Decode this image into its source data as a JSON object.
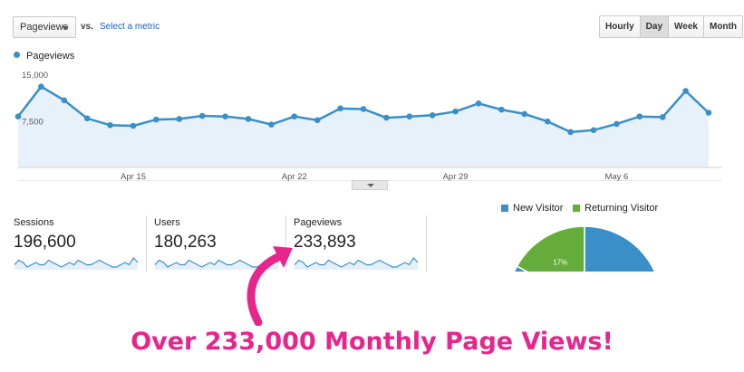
{
  "controls": {
    "metric_select": "Pageviews",
    "vs_label": "vs.",
    "select_metric_link": "Select a metric",
    "ranges": [
      {
        "label": "Hourly",
        "active": false
      },
      {
        "label": "Day",
        "active": true
      },
      {
        "label": "Week",
        "active": false
      },
      {
        "label": "Month",
        "active": false
      }
    ]
  },
  "colors": {
    "series_line": "#3a8fc9",
    "series_fill": "#e7f1fa",
    "new_visitor": "#3a8fc9",
    "returning_visitor": "#65ad3b",
    "caption": "#e8248d"
  },
  "chart_data": [
    {
      "type": "area",
      "series": [
        {
          "name": "Pageviews",
          "values": [
            8200,
            13000,
            10800,
            7900,
            6800,
            6700,
            7700,
            7800,
            8300,
            8200,
            7800,
            6900,
            8200,
            7600,
            9500,
            9400,
            8000,
            8200,
            8400,
            9000,
            10300,
            9300,
            8600,
            7400,
            5700,
            6000,
            7000,
            8200,
            8100,
            12300,
            8800
          ]
        }
      ],
      "x_tick_labels": [
        "Apr 15",
        "Apr 22",
        "Apr 29",
        "May 6"
      ],
      "x_tick_index": [
        5,
        12,
        19,
        26
      ],
      "y_tick_labels": [
        "15,000",
        "7,500"
      ],
      "y_tick_values": [
        15000,
        7500
      ],
      "ylim": [
        0,
        15000
      ],
      "grid": false,
      "legend": "top-left"
    },
    {
      "type": "pie",
      "labels": [
        "New Visitor",
        "Returning Visitor"
      ],
      "values": [
        83,
        17
      ],
      "data_labels": [
        "",
        "17%"
      ],
      "legend": "top"
    }
  ],
  "stats": [
    {
      "label": "Sessions",
      "value": "196,600"
    },
    {
      "label": "Users",
      "value": "180,263"
    },
    {
      "label": "Pageviews",
      "value": "233,893"
    }
  ],
  "sparkline": [
    5,
    7,
    6,
    4,
    5,
    6,
    5,
    5,
    7,
    6,
    5,
    4,
    5,
    6,
    5,
    7,
    6,
    5,
    5,
    6,
    7,
    6,
    5,
    4,
    4,
    5,
    6,
    5,
    8,
    6
  ],
  "caption": "Over 233,000 Monthly Page Views!"
}
